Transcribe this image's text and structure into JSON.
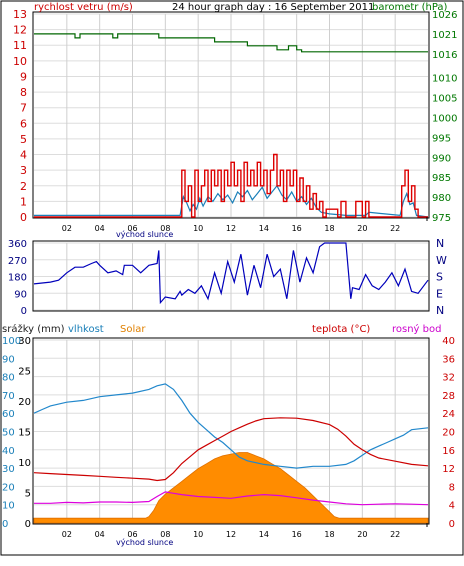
{
  "chart_data": [
    {
      "type": "line",
      "title": "24 hour graph day : 16 September 2011",
      "y_left_label": "rychlost vetru (m/s)",
      "y_right_label": "barometr (hPa)",
      "x_ticks": [
        "02",
        "04",
        "06",
        "08",
        "10",
        "12",
        "14",
        "16",
        "18",
        "20",
        "22"
      ],
      "x_annotation": "východ slunce",
      "y_left_range": [
        0,
        13
      ],
      "y_left_ticks": [
        "0",
        "1",
        "2",
        "3",
        "4",
        "5",
        "6",
        "7",
        "8",
        "9",
        "10",
        "11",
        "12",
        "13"
      ],
      "y_right_range": [
        975,
        1026
      ],
      "y_right_ticks": [
        "975",
        "980",
        "985",
        "990",
        "995",
        "1000",
        "1005",
        "1010",
        "1016",
        "1021",
        "1026"
      ],
      "grid": true,
      "colors": {
        "wind_gust": "#dd0000",
        "wind_avg": "#1a7fb8",
        "pressure": "#006600",
        "left_axis": "#cc0000",
        "right_axis": "#007700"
      },
      "series": [
        {
          "role": "pressure",
          "x": [
            0,
            2.5,
            2.5,
            2.8,
            2.8,
            4.8,
            4.8,
            5.1,
            5.1,
            7.6,
            7.6,
            11.0,
            11.0,
            13.0,
            13.0,
            14.8,
            14.8,
            15.5,
            15.5,
            16.0,
            16.0,
            16.3,
            16.3,
            24.0
          ],
          "values": [
            1021,
            1021,
            1020,
            1020,
            1021,
            1021,
            1020,
            1020,
            1021,
            1021,
            1020,
            1020,
            1019,
            1019,
            1018,
            1018,
            1017,
            1017,
            1018,
            1018,
            1017,
            1017,
            1016.5,
            1016.5
          ]
        },
        {
          "role": "wind_avg",
          "x": [
            0,
            8.9,
            9.1,
            9.3,
            9.5,
            9.7,
            9.9,
            10.1,
            10.3,
            10.6,
            10.9,
            11.2,
            11.5,
            11.8,
            12.1,
            12.4,
            12.7,
            13.0,
            13.3,
            13.6,
            13.9,
            14.2,
            14.5,
            14.8,
            15.1,
            15.4,
            15.7,
            16.0,
            16.3,
            16.6,
            16.9,
            17.2,
            17.5,
            18.0,
            19.0,
            20.2,
            20.4,
            22.3,
            22.5,
            22.7,
            22.9,
            23.1,
            23.3,
            24.0
          ],
          "values": [
            0.1,
            0.1,
            1.3,
            0.9,
            0.4,
            0.8,
            0.5,
            1.2,
            0.7,
            1.3,
            1.0,
            1.5,
            1.1,
            1.4,
            0.9,
            1.6,
            1.3,
            1.7,
            1.1,
            1.5,
            1.9,
            1.2,
            1.6,
            2.0,
            1.4,
            1.1,
            1.6,
            1.0,
            1.3,
            0.8,
            1.2,
            0.6,
            0.3,
            0.2,
            0.1,
            0.1,
            0.3,
            0.1,
            1.0,
            1.5,
            0.8,
            0.9,
            0.1,
            0.0
          ]
        },
        {
          "role": "wind_gust",
          "x": [
            0,
            8.8,
            9.0,
            9.2,
            9.4,
            9.6,
            9.8,
            10.0,
            10.2,
            10.4,
            10.6,
            10.8,
            11.0,
            11.2,
            11.4,
            11.6,
            11.8,
            12.0,
            12.2,
            12.4,
            12.6,
            12.8,
            13.0,
            13.2,
            13.4,
            13.6,
            13.8,
            14.0,
            14.2,
            14.4,
            14.6,
            14.8,
            15.0,
            15.2,
            15.4,
            15.6,
            15.8,
            16.0,
            16.2,
            16.4,
            16.6,
            16.8,
            17.0,
            17.2,
            17.4,
            17.6,
            17.8,
            18.5,
            18.7,
            19.0,
            19.2,
            19.6,
            20.0,
            20.2,
            20.4,
            22.2,
            22.4,
            22.6,
            22.8,
            23.0,
            23.2,
            23.4,
            24.0
          ],
          "values": [
            0,
            0,
            3,
            1,
            2,
            0,
            3,
            1,
            2,
            3,
            1,
            3,
            2,
            3,
            1,
            3,
            2,
            3.5,
            2,
            3,
            1,
            3.5,
            2,
            3,
            2,
            3.5,
            2,
            3,
            1.5,
            3,
            4,
            2,
            3,
            1,
            3,
            2,
            3,
            1,
            2.5,
            1,
            2,
            0.5,
            1.5,
            0.5,
            1,
            0,
            0.5,
            0,
            1,
            0,
            0,
            1,
            0,
            1,
            0,
            0,
            2,
            3,
            1,
            2,
            0.5,
            0,
            0
          ]
        }
      ]
    },
    {
      "type": "line",
      "y_right_label": "N W S E N",
      "y_left_ticks": [
        "0",
        "90",
        "180",
        "270",
        "360"
      ],
      "y_range": [
        0,
        360
      ],
      "direction_labels": [
        "N",
        "W",
        "S",
        "E",
        "N"
      ],
      "grid": true,
      "colors": {
        "direction": "#0000bb"
      },
      "series": [
        {
          "role": "wind_direction",
          "x": [
            0,
            1.0,
            1.5,
            2.0,
            2.5,
            3.0,
            3.5,
            3.8,
            4.0,
            4.5,
            5.0,
            5.4,
            5.5,
            6.0,
            6.5,
            7.0,
            7.5,
            7.6,
            7.7,
            8.0,
            8.6,
            8.9,
            9.0,
            9.4,
            9.8,
            10.2,
            10.6,
            11.0,
            11.4,
            11.8,
            12.2,
            12.6,
            13.0,
            13.4,
            13.8,
            14.2,
            14.6,
            15.0,
            15.4,
            15.8,
            16.2,
            16.6,
            17.0,
            17.4,
            17.7,
            18.0,
            18.5,
            19.0,
            19.3,
            19.4,
            19.8,
            20.2,
            20.6,
            21.0,
            21.4,
            21.8,
            22.2,
            22.6,
            23.0,
            23.4,
            24.0
          ],
          "values": [
            140,
            150,
            160,
            200,
            230,
            230,
            250,
            260,
            240,
            200,
            210,
            190,
            240,
            240,
            200,
            240,
            250,
            320,
            40,
            70,
            60,
            100,
            80,
            110,
            90,
            130,
            60,
            200,
            90,
            260,
            150,
            300,
            80,
            240,
            120,
            300,
            180,
            220,
            60,
            320,
            150,
            280,
            200,
            340,
            360,
            360,
            360,
            360,
            60,
            120,
            110,
            190,
            130,
            110,
            150,
            200,
            130,
            220,
            100,
            90,
            160
          ]
        }
      ]
    },
    {
      "type": "area",
      "y_labels": [
        "srážky (mm)",
        "vlhkost",
        "Solar"
      ],
      "y_right_labels": [
        "teplota (°C)",
        "rosný bod"
      ],
      "x_ticks": [
        "02",
        "04",
        "06",
        "08",
        "10",
        "12",
        "14",
        "16",
        "18",
        "20",
        "22"
      ],
      "x_annotation": "východ slunce",
      "axis_humidity_ticks": [
        "0",
        "10",
        "20",
        "30",
        "40",
        "50",
        "60",
        "70",
        "80",
        "90",
        "100"
      ],
      "axis_rain_ticks": [
        "0",
        "5",
        "10",
        "15",
        "20",
        "25",
        "30"
      ],
      "axis_temp_left_ticks": [
        "0",
        "4",
        "8",
        "12",
        "16",
        "20",
        "24",
        "28",
        "32",
        "36",
        "40"
      ],
      "axis_temp_right_ticks": [
        "0",
        "4",
        "8",
        "12",
        "16",
        "20",
        "24",
        "28",
        "32",
        "36",
        "40"
      ],
      "humidity_range": [
        0,
        100
      ],
      "temperature_range": [
        0,
        40
      ],
      "grid": true,
      "colors": {
        "humidity": "#2288cc",
        "solar": "#ff8c00",
        "temperature": "#cc0000",
        "dewpoint": "#dd00dd",
        "rain_label": "#222222",
        "solar_label": "#e08000",
        "temp_label": "#cc0000",
        "dew_label": "#cc00cc",
        "humidity_label": "#1a7fb8"
      },
      "series": [
        {
          "role": "solar",
          "x": [
            0,
            6.8,
            7.0,
            7.3,
            7.6,
            8.0,
            8.5,
            9.0,
            9.5,
            10.0,
            10.5,
            11.0,
            11.5,
            12.0,
            12.5,
            13.0,
            13.5,
            14.0,
            14.5,
            15.0,
            15.5,
            16.0,
            16.5,
            17.0,
            17.5,
            18.0,
            18.3,
            18.6,
            24.0
          ],
          "values": [
            3,
            3,
            4,
            8,
            14,
            18,
            22,
            26,
            30,
            34,
            37,
            40,
            42,
            43,
            44,
            44,
            42,
            40,
            37,
            34,
            30,
            26,
            22,
            17,
            12,
            7,
            4,
            3,
            3
          ]
        },
        {
          "role": "humidity",
          "x": [
            0,
            0.5,
            1.0,
            2.0,
            3.0,
            4.0,
            5.0,
            6.0,
            7.0,
            7.5,
            8.0,
            8.5,
            9.0,
            9.5,
            10.0,
            10.5,
            11.0,
            11.5,
            12.0,
            12.5,
            13.0,
            14.0,
            15.0,
            16.0,
            17.0,
            18.0,
            19.0,
            19.5,
            20.0,
            20.5,
            21.0,
            21.5,
            22.0,
            22.5,
            23.0,
            24.0
          ],
          "values": [
            60,
            62,
            64,
            66,
            67,
            69,
            70,
            71,
            73,
            75,
            76,
            73,
            67,
            60,
            55,
            51,
            47,
            44,
            40,
            36,
            34,
            32,
            31,
            30,
            31,
            31,
            32,
            34,
            37,
            40,
            42,
            44,
            46,
            48,
            51,
            52
          ]
        },
        {
          "role": "temperature",
          "x": [
            0,
            1.0,
            2.0,
            3.0,
            4.0,
            5.0,
            6.0,
            7.0,
            7.5,
            8.0,
            8.5,
            9.0,
            9.5,
            10.0,
            10.5,
            11.0,
            11.5,
            12.0,
            12.5,
            13.0,
            13.5,
            14.0,
            15.0,
            16.0,
            17.0,
            18.0,
            18.5,
            19.0,
            19.5,
            20.0,
            20.5,
            21.0,
            22.0,
            23.0,
            24.0
          ],
          "values": [
            11,
            10.8,
            10.6,
            10.4,
            10.2,
            10.0,
            9.8,
            9.6,
            9.3,
            9.5,
            11,
            13,
            14.5,
            16,
            17,
            18,
            19,
            20,
            20.8,
            21.6,
            22.3,
            22.8,
            23,
            22.9,
            22.4,
            21.5,
            20.5,
            19,
            17.2,
            16,
            15,
            14.2,
            13.5,
            12.8,
            12.5
          ]
        },
        {
          "role": "dewpoint",
          "x": [
            0,
            1.0,
            2.0,
            3.0,
            4.0,
            5.0,
            6.0,
            7.0,
            7.5,
            8.0,
            8.5,
            9.0,
            10.0,
            11.0,
            12.0,
            13.0,
            14.0,
            15.0,
            16.0,
            17.0,
            18.0,
            19.0,
            20.0,
            21.0,
            22.0,
            23.0,
            24.0
          ],
          "values": [
            4.3,
            4.3,
            4.5,
            4.4,
            4.6,
            4.6,
            4.5,
            4.7,
            5.8,
            6.8,
            6.5,
            6.2,
            5.8,
            5.6,
            5.4,
            5.9,
            6.2,
            6.0,
            5.5,
            5.0,
            4.6,
            4.2,
            4.0,
            4.1,
            4.2,
            4.1,
            4.0
          ]
        }
      ]
    }
  ]
}
